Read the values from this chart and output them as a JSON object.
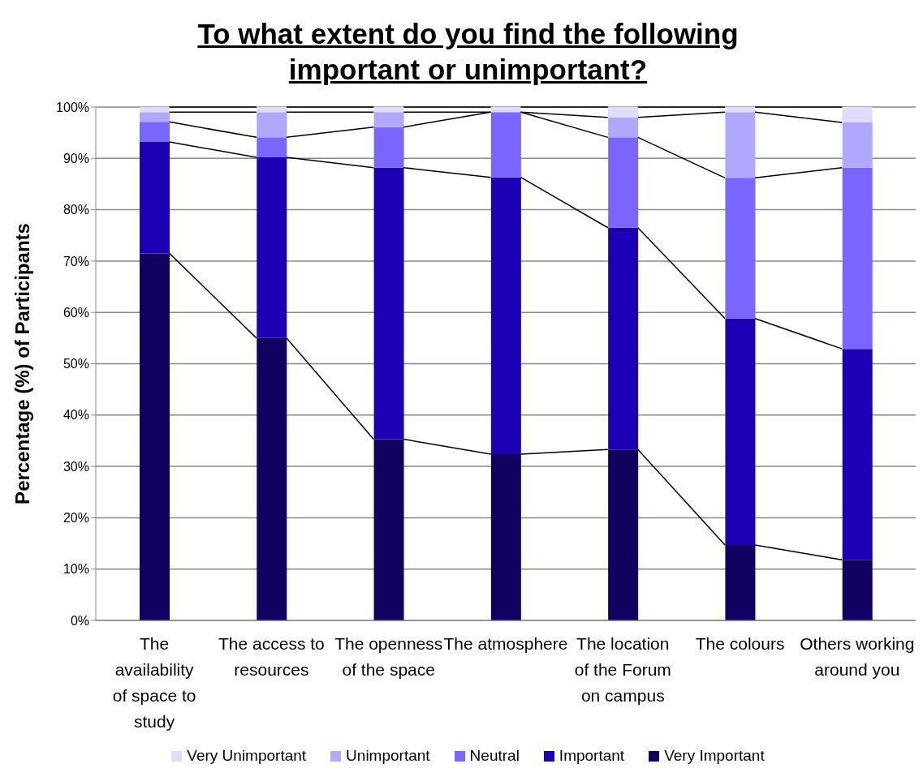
{
  "chart_data": {
    "type": "bar",
    "title": "To what extent do you find the following important or unimportant?",
    "ylabel": "Percentage (%) of Participants",
    "categories": [
      "The availability of space to study",
      "The access to resources",
      "The openness of the space",
      "The atmosphere",
      "The location of the Forum on campus",
      "The colours",
      "Others working around you"
    ],
    "series": [
      {
        "name": "Very Important",
        "color": "#110060",
        "values": [
          71.5,
          55,
          35.3,
          32.4,
          33.3,
          14.7,
          11.8
        ]
      },
      {
        "name": "Important",
        "color": "#1c00b4",
        "values": [
          21.7,
          35.2,
          52.9,
          53.9,
          43.2,
          44.1,
          41.1
        ]
      },
      {
        "name": "Neutral",
        "color": "#7a66ff",
        "values": [
          3.9,
          3.9,
          7.9,
          12.7,
          17.6,
          27.4,
          35.3
        ]
      },
      {
        "name": "Unimportant",
        "color": "#b0a8ff",
        "values": [
          1.9,
          4.9,
          2.9,
          0,
          3.9,
          12.8,
          8.8
        ]
      },
      {
        "name": "Very Unimportant",
        "color": "#e0dcff",
        "values": [
          1,
          1,
          1,
          1,
          2,
          1,
          3
        ]
      }
    ],
    "stacked": true,
    "ylim": [
      0,
      100
    ],
    "yticks": [
      {
        "value": 0,
        "label": "0%"
      },
      {
        "value": 10,
        "label": "10%"
      },
      {
        "value": 20,
        "label": "20%"
      },
      {
        "value": 30,
        "label": "30%"
      },
      {
        "value": 40,
        "label": "40%"
      },
      {
        "value": 50,
        "label": "50%"
      },
      {
        "value": 60,
        "label": "60%"
      },
      {
        "value": 70,
        "label": "70%"
      },
      {
        "value": 80,
        "label": "80%"
      },
      {
        "value": 90,
        "label": "90%"
      },
      {
        "value": 100,
        "label": "100%"
      }
    ],
    "grid": "y",
    "legend": "bottom"
  }
}
